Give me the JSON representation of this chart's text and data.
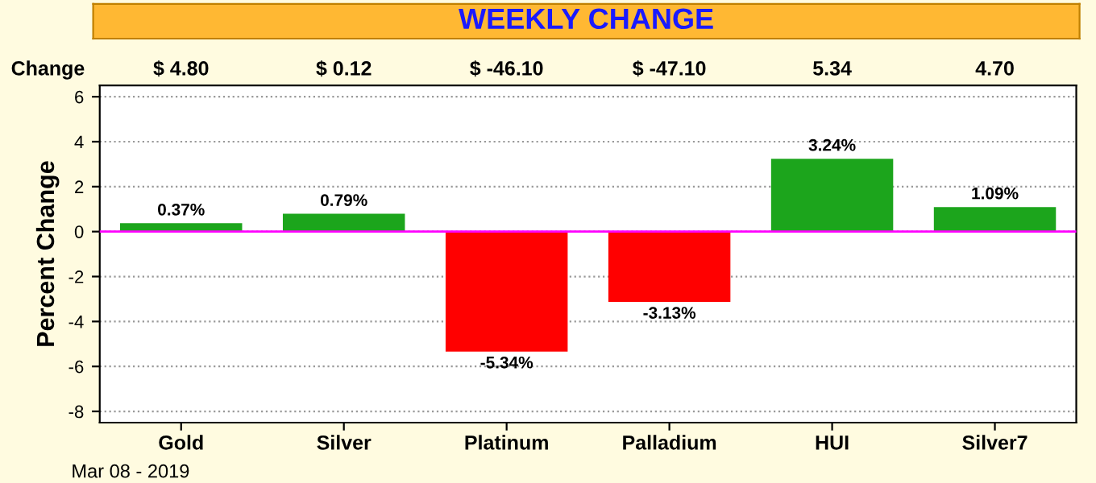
{
  "chart_data": {
    "type": "bar",
    "title": "WEEKLY CHANGE",
    "ylabel": "Percent Change",
    "categories": [
      "Gold",
      "Silver",
      "Platinum",
      "Palladium",
      "HUI",
      "Silver7"
    ],
    "values": [
      0.37,
      0.79,
      -5.34,
      -3.13,
      3.24,
      1.09
    ],
    "colors": [
      "#1ca51c",
      "#1ca51c",
      "#ff0000",
      "#ff0000",
      "#1ca51c",
      "#1ca51c"
    ],
    "value_labels": [
      "0.37%",
      "0.79%",
      "-5.34%",
      "-3.13%",
      "3.24%",
      "1.09%"
    ],
    "annotations": [
      "Change",
      "$ 4.80",
      "$ 0.12",
      "$ -46.10",
      "$ -47.10",
      "5.34",
      "4.70",
      "Mar 08 - 2019"
    ],
    "ylim": [
      -8.5,
      6.5
    ],
    "yticks": [
      {
        "value": -8,
        "label": "-8"
      },
      {
        "value": -6,
        "label": "-6"
      },
      {
        "value": -4,
        "label": "-4"
      },
      {
        "value": -2,
        "label": "-2"
      },
      0,
      2,
      4,
      6
    ],
    "ref_lines": [
      {
        "axis": "y",
        "value": 0,
        "color": "#ff00ff"
      }
    ],
    "grid": "y"
  }
}
